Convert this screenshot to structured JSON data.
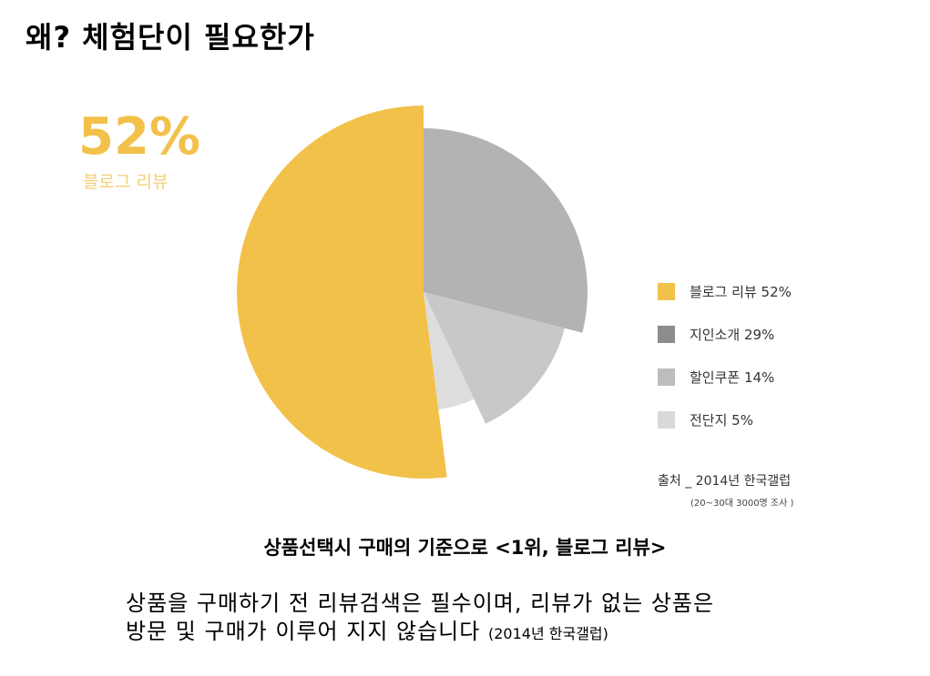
{
  "page": {
    "title": "왜? 체험단이 필요한가",
    "highlight": {
      "value": "52%",
      "label": "블로그 리뷰"
    },
    "subtitle": "상품선택시 구매의 기준으로 <1위, 블로그 리뷰>",
    "body_line1": "상품을 구매하기 전 리뷰검색은 필수이며, 리뷰가 없는 상품은",
    "body_line2": "방문 및 구매가 이루어 지지 않습니다",
    "body_note": "(2014년 한국갤럽)"
  },
  "chart_data": {
    "type": "pie",
    "categories": [
      "블로그 리뷰",
      "지인소개",
      "할인쿠폰",
      "전단지"
    ],
    "values": [
      52,
      29,
      14,
      5
    ],
    "legend_labels": [
      "블로그 리뷰 52%",
      "지인소개 29%",
      "할인쿠폰  14%",
      "전단지  5%"
    ],
    "colors": [
      "#f2c14a",
      "#b3b3b3",
      "#c8c8c8",
      "#dddddd"
    ],
    "legend_swatch_colors": [
      "#f2c14a",
      "#8c8c8c",
      "#bdbdbd",
      "#d9d9d9"
    ],
    "legend_position": "right",
    "source": "출처 _ 2014년 한국갤럽",
    "source_note": "(20~30대 3000명 조사 )"
  }
}
